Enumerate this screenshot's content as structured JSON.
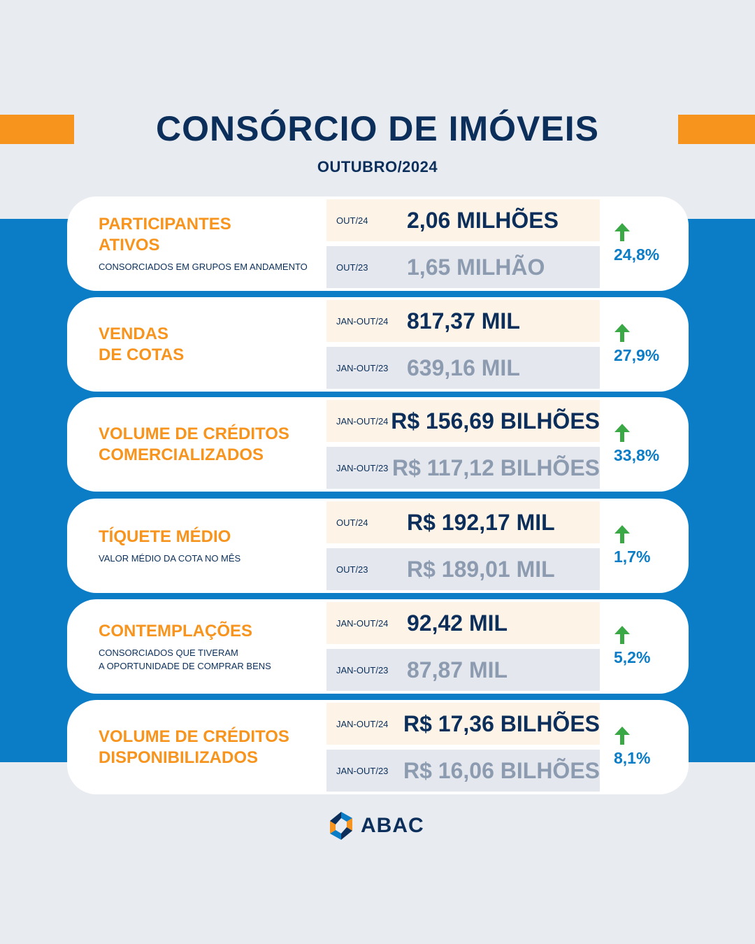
{
  "header": {
    "title": "CONSÓRCIO DE IMÓVEIS",
    "subtitle": "OUTUBRO/2024"
  },
  "colors": {
    "accent": "#f7941d",
    "navy": "#0b2f5a",
    "blue": "#0b7cc6",
    "arrow_green": "#3aa845"
  },
  "cards": [
    {
      "title": "PARTICIPANTES\nATIVOS",
      "description": "CONSORCIADOS EM GRUPOS EM ANDAMENTO",
      "current_period": "OUT/24",
      "current_value": "2,06 MILHÕES",
      "previous_period": "OUT/23",
      "previous_value": "1,65 MILHÃO",
      "change": "24,8%",
      "icon": "up-arrow-icon"
    },
    {
      "title": "VENDAS\nDE COTAS",
      "description": "",
      "current_period": "JAN-OUT/24",
      "current_value": "817,37 MIL",
      "previous_period": "JAN-OUT/23",
      "previous_value": "639,16 MIL",
      "change": "27,9%",
      "icon": "up-arrow-icon"
    },
    {
      "title": "VOLUME DE CRÉDITOS\nCOMERCIALIZADOS",
      "description": "",
      "current_period": "JAN-OUT/24",
      "current_value": "R$ 156,69 BILHÕES",
      "previous_period": "JAN-OUT/23",
      "previous_value": "R$ 117,12 BILHÕES",
      "change": "33,8%",
      "icon": "up-arrow-icon"
    },
    {
      "title": "TÍQUETE MÉDIO",
      "description": "VALOR MÉDIO DA COTA NO MÊS",
      "current_period": "OUT/24",
      "current_value": "R$ 192,17 MIL",
      "previous_period": "OUT/23",
      "previous_value": "R$ 189,01 MIL",
      "change": "1,7%",
      "icon": "up-arrow-icon"
    },
    {
      "title": "CONTEMPLAÇÕES",
      "description": "CONSORCIADOS QUE TIVERAM\nA OPORTUNIDADE DE COMPRAR BENS",
      "current_period": "JAN-OUT/24",
      "current_value": "92,42 MIL",
      "previous_period": "JAN-OUT/23",
      "previous_value": "87,87 MIL",
      "change": "5,2%",
      "icon": "up-arrow-icon"
    },
    {
      "title": "VOLUME DE CRÉDITOS\nDISPONIBILIZADOS",
      "description": "",
      "current_period": "JAN-OUT/24",
      "current_value": "R$ 17,36 BILHÕES",
      "previous_period": "JAN-OUT/23",
      "previous_value": "R$ 16,06 BILHÕES",
      "change": "8,1%",
      "icon": "up-arrow-icon"
    }
  ],
  "footer": {
    "logo_text": "ABAC",
    "logo_icon": "abac-logo-icon"
  }
}
